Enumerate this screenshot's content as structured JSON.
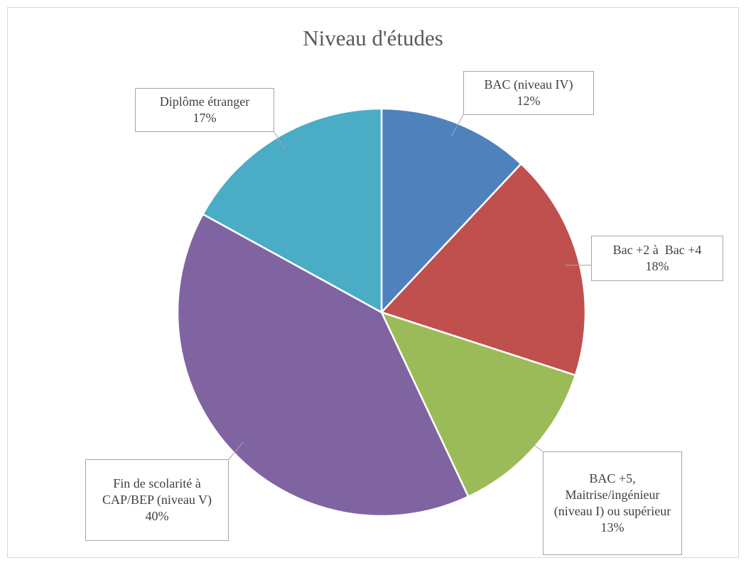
{
  "chart_data": {
    "type": "pie",
    "title": "Niveau d'études",
    "categories": [
      "BAC (niveau IV)",
      "Bac +2 à  Bac +4",
      "BAC +5, Maitrise/ingénieur (niveau I) ou supérieur",
      "Fin de scolarité à CAP/BEP (niveau V)",
      "Diplôme étranger"
    ],
    "values": [
      12,
      18,
      13,
      40,
      17
    ],
    "value_labels": [
      "12%",
      "18%",
      "13%",
      "40%",
      "17%"
    ],
    "colors": [
      "#4f81bd",
      "#c0504d",
      "#9bbb59",
      "#8064a2",
      "#4bacc6"
    ]
  }
}
